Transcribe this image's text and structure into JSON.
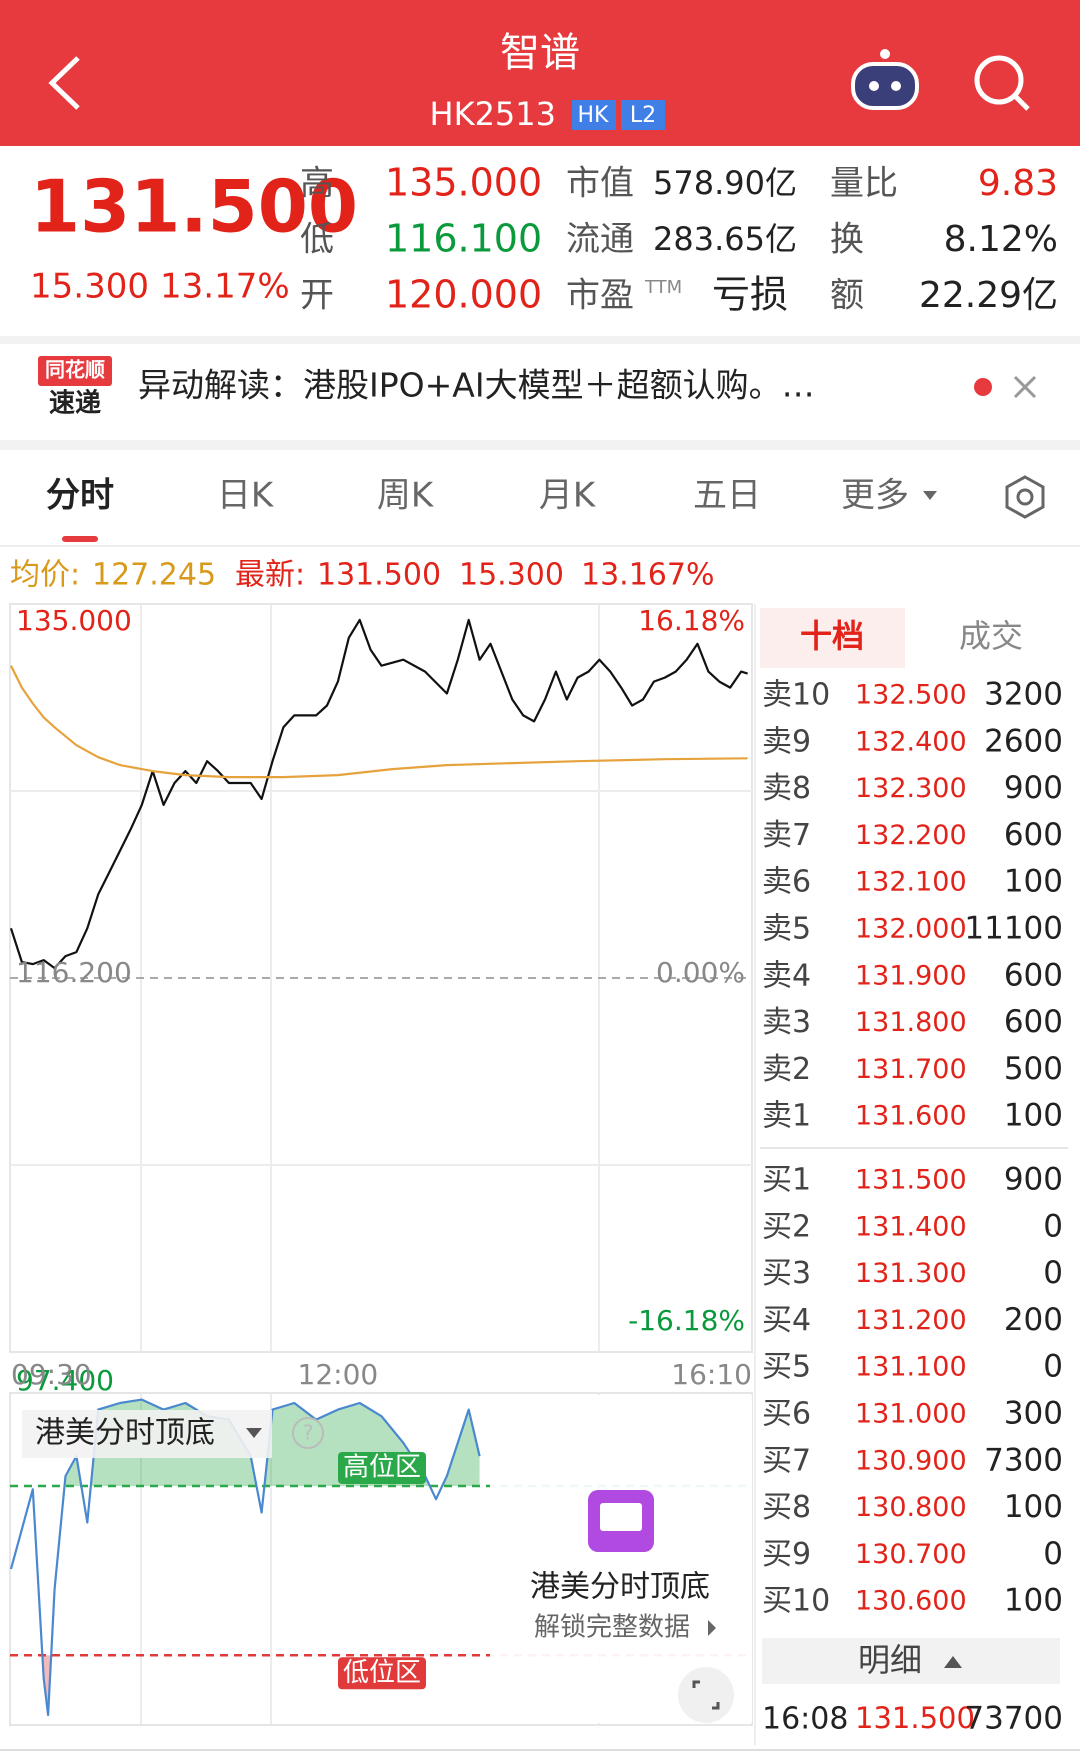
{
  "header": {
    "title": "智谱",
    "code": "HK2513",
    "badges": [
      "HK",
      "L2"
    ]
  },
  "quote": {
    "price": "131.500",
    "change": "15.300",
    "change_pct": "13.17%",
    "stats": [
      {
        "label": "高",
        "value": "135.000"
      },
      {
        "label": "低",
        "value": "116.100"
      },
      {
        "label": "开",
        "value": "120.000"
      },
      {
        "label": "市值",
        "value": "578.90亿"
      },
      {
        "label": "流通",
        "value": "283.65亿"
      },
      {
        "label": "市盈",
        "sup": "TTM",
        "value": "亏损"
      },
      {
        "label": "量比",
        "value": "9.83"
      },
      {
        "label": "换",
        "value": "8.12%"
      },
      {
        "label": "额",
        "value": "22.29亿"
      }
    ]
  },
  "news": {
    "logo": [
      "同花顺",
      "速递"
    ],
    "text": "异动解读：港股IPO+AI大模型＋超额认购。…"
  },
  "tabs": [
    "分时",
    "日K",
    "周K",
    "月K",
    "五日",
    "更多"
  ],
  "summary": {
    "avg_label": "均价:",
    "avg": "127.245",
    "latest_label": "最新:",
    "latest": "131.500",
    "change": "15.300",
    "change_pct": "13.167%"
  },
  "chart_data": [
    {
      "type": "line",
      "xlim": [
        0,
        340
      ],
      "xticks": [
        {
          "value": 0,
          "label": "09:30"
        },
        {
          "value": 150,
          "label": "12:00"
        },
        {
          "value": 340,
          "label": "16:10"
        }
      ],
      "ylim": [
        97.4,
        135
      ],
      "yticks": [
        {
          "value": 97.4,
          "label": "97.400"
        },
        {
          "value": 116.2,
          "label": "116.200"
        },
        {
          "value": 135,
          "label": "135.000"
        }
      ],
      "y2lim": [
        -16.18,
        16.18
      ],
      "y2ticks": [
        {
          "value": -16.18,
          "label": "-16.18%"
        },
        {
          "value": 0,
          "label": "0.00%"
        },
        {
          "value": 16.18,
          "label": "16.18%"
        }
      ],
      "series": [
        {
          "color": "#111111",
          "x": [
            0,
            5,
            10,
            15,
            20,
            25,
            30,
            35,
            40,
            45,
            50,
            55,
            60,
            65,
            70,
            75,
            80,
            85,
            90,
            95,
            100,
            110,
            115,
            120,
            125,
            130,
            140,
            145,
            150,
            155,
            160,
            165,
            170,
            180,
            190,
            200,
            205,
            210,
            215,
            220,
            225,
            230,
            235,
            240,
            245,
            250,
            255,
            260,
            265,
            270,
            275,
            280,
            285,
            290,
            295,
            300,
            305,
            310,
            315,
            320,
            325,
            330,
            335,
            338
          ],
          "values": [
            118.7,
            117.0,
            116.9,
            117.1,
            116.7,
            117.3,
            117.5,
            118.7,
            120.4,
            121.5,
            122.6,
            123.7,
            124.9,
            126.6,
            124.9,
            126.0,
            126.6,
            126.0,
            127.1,
            126.6,
            126.0,
            126.0,
            125.2,
            127.1,
            128.8,
            129.4,
            129.4,
            129.9,
            131.1,
            133.3,
            134.2,
            132.7,
            131.9,
            132.2,
            131.6,
            130.5,
            132.2,
            134.2,
            132.2,
            133.0,
            131.6,
            130.2,
            129.4,
            129.1,
            130.2,
            131.6,
            130.2,
            131.3,
            131.6,
            132.2,
            131.6,
            130.8,
            129.9,
            130.2,
            131.1,
            131.3,
            131.6,
            132.2,
            133.0,
            131.6,
            131.1,
            130.8,
            131.6,
            131.5
          ]
        },
        {
          "color": "#e6a23c",
          "x": [
            0,
            5,
            10,
            15,
            20,
            30,
            40,
            50,
            65,
            80,
            100,
            125,
            150,
            175,
            200,
            230,
            260,
            300,
            338
          ],
          "values": [
            131.9,
            130.8,
            130.0,
            129.3,
            128.8,
            127.9,
            127.3,
            126.9,
            126.6,
            126.4,
            126.3,
            126.3,
            126.4,
            126.7,
            126.9,
            127.0,
            127.1,
            127.2,
            127.245
          ]
        }
      ]
    },
    {
      "type": "line",
      "title": "港美分时顶底",
      "xlim": [
        0,
        340
      ],
      "ylim": [
        0,
        100
      ],
      "series": [
        {
          "color": "#4a88d0",
          "x": [
            0,
            10,
            15,
            17,
            20,
            25,
            30,
            35,
            40,
            50,
            60,
            70,
            80,
            90,
            100,
            110,
            115,
            120,
            130,
            140,
            150,
            160,
            170,
            180,
            190,
            195,
            200,
            210,
            215
          ],
          "values": [
            47,
            71,
            14,
            3,
            41,
            75,
            81,
            61,
            95,
            97,
            98,
            95,
            97,
            93,
            92,
            81,
            64,
            95,
            97,
            92,
            95,
            97,
            93,
            85,
            75,
            68,
            75,
            95,
            81
          ]
        }
      ],
      "zones": [
        {
          "label": "高位区",
          "value": 72,
          "color": "#2aa84a"
        },
        {
          "label": "低位区",
          "value": 21,
          "color": "#e03a3a"
        }
      ]
    }
  ],
  "lock": {
    "title": "港美分时顶底",
    "text": "解锁完整数据"
  },
  "order_book": {
    "tabs": [
      "十档",
      "成交"
    ],
    "asks": [
      {
        "label": "卖10",
        "price": "132.500",
        "volume": 3200
      },
      {
        "label": "卖9",
        "price": "132.400",
        "volume": 2600
      },
      {
        "label": "卖8",
        "price": "132.300",
        "volume": 900
      },
      {
        "label": "卖7",
        "price": "132.200",
        "volume": 600
      },
      {
        "label": "卖6",
        "price": "132.100",
        "volume": 100
      },
      {
        "label": "卖5",
        "price": "132.000",
        "volume": 11100
      },
      {
        "label": "卖4",
        "price": "131.900",
        "volume": 600
      },
      {
        "label": "卖3",
        "price": "131.800",
        "volume": 600
      },
      {
        "label": "卖2",
        "price": "131.700",
        "volume": 500
      },
      {
        "label": "卖1",
        "price": "131.600",
        "volume": 100
      }
    ],
    "bids": [
      {
        "label": "买1",
        "price": "131.500",
        "volume": 900
      },
      {
        "label": "买2",
        "price": "131.400",
        "volume": 0
      },
      {
        "label": "买3",
        "price": "131.300",
        "volume": 0
      },
      {
        "label": "买4",
        "price": "131.200",
        "volume": 200
      },
      {
        "label": "买5",
        "price": "131.100",
        "volume": 0
      },
      {
        "label": "买6",
        "price": "131.000",
        "volume": 300
      },
      {
        "label": "买7",
        "price": "130.900",
        "volume": 7300
      },
      {
        "label": "买8",
        "price": "130.800",
        "volume": 100
      },
      {
        "label": "买9",
        "price": "130.700",
        "volume": 0
      },
      {
        "label": "买10",
        "price": "130.600",
        "volume": 100
      }
    ],
    "detail": "明细",
    "trades": [
      {
        "time": "16:08",
        "price": "131.500",
        "volume": 73700
      }
    ]
  }
}
